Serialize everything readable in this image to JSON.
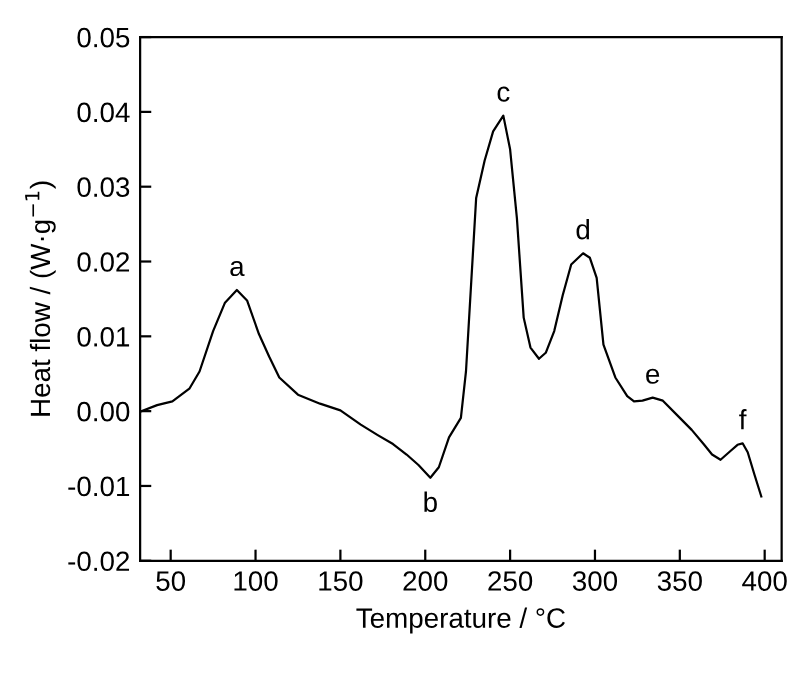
{
  "chart_data": {
    "type": "line",
    "xlabel": "Temperature / °C",
    "ylabel": "Heat flow / (W·g$^{−1}$)",
    "xlim": [
      32,
      410
    ],
    "ylim": [
      -0.02,
      0.05
    ],
    "xticks": [
      50,
      100,
      150,
      200,
      250,
      300,
      350,
      400
    ],
    "yticks": [
      {
        "value": -0.02,
        "label": "-0.02"
      },
      {
        "value": -0.01,
        "label": "-0.01"
      },
      {
        "value": 0,
        "label": "0.00"
      },
      {
        "value": 0.01,
        "label": "0.01"
      },
      {
        "value": 0.02,
        "label": "0.02"
      },
      {
        "value": 0.03,
        "label": "0.03"
      },
      {
        "value": 0.04,
        "label": "0.04"
      },
      {
        "value": 0.05,
        "label": "0.05"
      }
    ],
    "grid": false,
    "legend": false,
    "marker": "none",
    "line_style": "solid",
    "series": [
      {
        "color": "#000000",
        "x": [
          33,
          42,
          51,
          61,
          67,
          75,
          82,
          89,
          95,
          102,
          108,
          114,
          125,
          138,
          150,
          162,
          172,
          181,
          189,
          196,
          203,
          208,
          214,
          221,
          224,
          230,
          235,
          240,
          246,
          250,
          254,
          258,
          262,
          267,
          271,
          276,
          281,
          286,
          293,
          297,
          301,
          305,
          312,
          319,
          323,
          328,
          334,
          340,
          350,
          357,
          364,
          369,
          374,
          380,
          384,
          387,
          390,
          394,
          398
        ],
        "values": [
          0.0,
          0.0008,
          0.0013,
          0.003,
          0.0053,
          0.0107,
          0.0145,
          0.0162,
          0.0148,
          0.0103,
          0.0073,
          0.0045,
          0.0022,
          0.001,
          0.0001,
          -0.0018,
          -0.0032,
          -0.0044,
          -0.0058,
          -0.0072,
          -0.0089,
          -0.0075,
          -0.0035,
          -0.0009,
          0.0053,
          0.0285,
          0.0335,
          0.0374,
          0.0395,
          0.035,
          0.0258,
          0.0125,
          0.0085,
          0.007,
          0.0078,
          0.0107,
          0.0155,
          0.0196,
          0.0211,
          0.0205,
          0.0178,
          0.0089,
          0.0045,
          0.002,
          0.0013,
          0.0014,
          0.0018,
          0.0014,
          -0.0009,
          -0.0025,
          -0.0044,
          -0.0058,
          -0.0065,
          -0.0053,
          -0.0045,
          -0.0043,
          -0.0055,
          -0.0085,
          -0.0114
        ]
      }
    ],
    "annotations": [
      {
        "text": "a",
        "x": 89,
        "y": 0.0162
      },
      {
        "text": "b",
        "x": 203,
        "y": -0.0089
      },
      {
        "text": "c",
        "x": 246,
        "y": 0.0395
      },
      {
        "text": "d",
        "x": 293,
        "y": 0.0211
      },
      {
        "text": "e",
        "x": 334,
        "y": 0.0018
      },
      {
        "text": "f",
        "x": 387,
        "y": -0.0043
      }
    ]
  }
}
